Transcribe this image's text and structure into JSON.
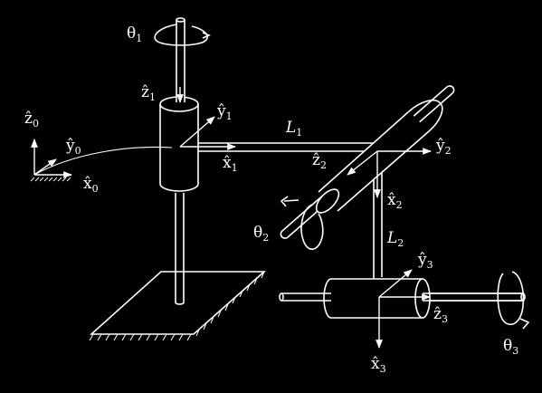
{
  "figure": {
    "background": "#000000",
    "stroke_color": "#ffffff"
  },
  "labels": {
    "theta1": {
      "sym": "θ",
      "sub": "1"
    },
    "theta2": {
      "sym": "θ",
      "sub": "2"
    },
    "theta3": {
      "sym": "θ",
      "sub": "3"
    },
    "L1": {
      "sym": "L",
      "sub": "1"
    },
    "L2": {
      "sym": "L",
      "sub": "2"
    },
    "z0": {
      "sym": "ẑ",
      "sub": "0"
    },
    "y0": {
      "sym": "ŷ",
      "sub": "0"
    },
    "x0": {
      "sym": "x̂",
      "sub": "0"
    },
    "z1": {
      "sym": "ẑ",
      "sub": "1"
    },
    "y1": {
      "sym": "ŷ",
      "sub": "1"
    },
    "x1": {
      "sym": "x̂",
      "sub": "1"
    },
    "z2": {
      "sym": "ẑ",
      "sub": "2"
    },
    "y2": {
      "sym": "ŷ",
      "sub": "2"
    },
    "x2": {
      "sym": "x̂",
      "sub": "2"
    },
    "y3": {
      "sym": "ŷ",
      "sub": "3"
    },
    "z3": {
      "sym": "ẑ",
      "sub": "3"
    },
    "x3": {
      "sym": "x̂",
      "sub": "3"
    }
  }
}
